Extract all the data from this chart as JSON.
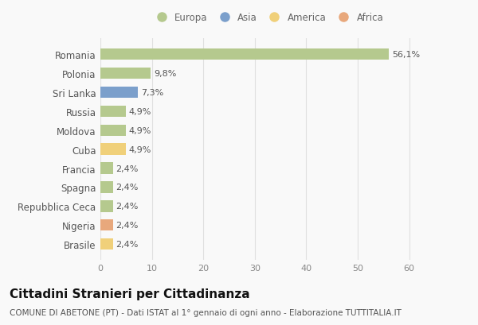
{
  "countries": [
    "Romania",
    "Polonia",
    "Sri Lanka",
    "Russia",
    "Moldova",
    "Cuba",
    "Francia",
    "Spagna",
    "Repubblica Ceca",
    "Nigeria",
    "Brasile"
  ],
  "values": [
    56.1,
    9.8,
    7.3,
    4.9,
    4.9,
    4.9,
    2.4,
    2.4,
    2.4,
    2.4,
    2.4
  ],
  "labels": [
    "56,1%",
    "9,8%",
    "7,3%",
    "4,9%",
    "4,9%",
    "4,9%",
    "2,4%",
    "2,4%",
    "2,4%",
    "2,4%",
    "2,4%"
  ],
  "continents": [
    "Europa",
    "Europa",
    "Asia",
    "Europa",
    "Europa",
    "America",
    "Europa",
    "Europa",
    "Europa",
    "Africa",
    "America"
  ],
  "colors": {
    "Europa": "#b5c98e",
    "Asia": "#7b9fcb",
    "America": "#f0d07a",
    "Africa": "#e8a87c"
  },
  "xlim": [
    0,
    65
  ],
  "xticks": [
    0,
    10,
    20,
    30,
    40,
    50,
    60
  ],
  "bg_color": "#f9f9f9",
  "grid_color": "#e0e0e0",
  "title": "Cittadini Stranieri per Cittadinanza",
  "subtitle": "COMUNE DI ABETONE (PT) - Dati ISTAT al 1° gennaio di ogni anno - Elaborazione TUTTITALIA.IT",
  "title_fontsize": 11,
  "subtitle_fontsize": 7.5,
  "bar_height": 0.6,
  "legend_order": [
    "Europa",
    "Asia",
    "America",
    "Africa"
  ]
}
